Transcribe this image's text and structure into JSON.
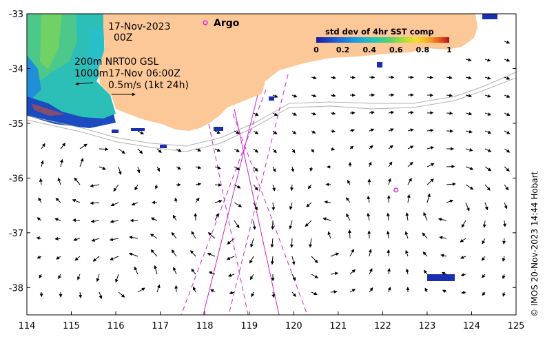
{
  "map": {
    "lon_range": [
      114,
      125
    ],
    "lat_range": [
      -38.5,
      -33
    ],
    "x_ticks": [
      114,
      115,
      116,
      117,
      118,
      119,
      120,
      121,
      122,
      123,
      124,
      125
    ],
    "y_ticks": [
      -33,
      -34,
      -35,
      -36,
      -37,
      -38
    ],
    "land_color": "#fdc898",
    "sst_colors": [
      "#1a1a9e",
      "#1f5fd6",
      "#19a0e0",
      "#2cc7b0",
      "#56d46a",
      "#a6dd3a",
      "#f1e02c",
      "#f5a623",
      "#e8551e",
      "#b3111b"
    ]
  },
  "annotations": {
    "date": "17-Nov-2023",
    "hour": "00Z",
    "depth_line": "200m  NRT00 GSL",
    "isobath_line": "1000m17-Nov 06:00Z",
    "scale_label": "0.5m/s (1kt 24h)"
  },
  "legend": {
    "title": "std dev of 4hr SST comp",
    "ticks": [
      "0",
      "0.2",
      "0.4",
      "0.6",
      "0.8",
      "1"
    ]
  },
  "argo": {
    "label": "Argo",
    "float_lon": 122.3,
    "float_lat": -36.22,
    "legend_marker_color": "#e020e0"
  },
  "credit": "© IMOS 20-Nov-2023 14:44 Hobart"
}
